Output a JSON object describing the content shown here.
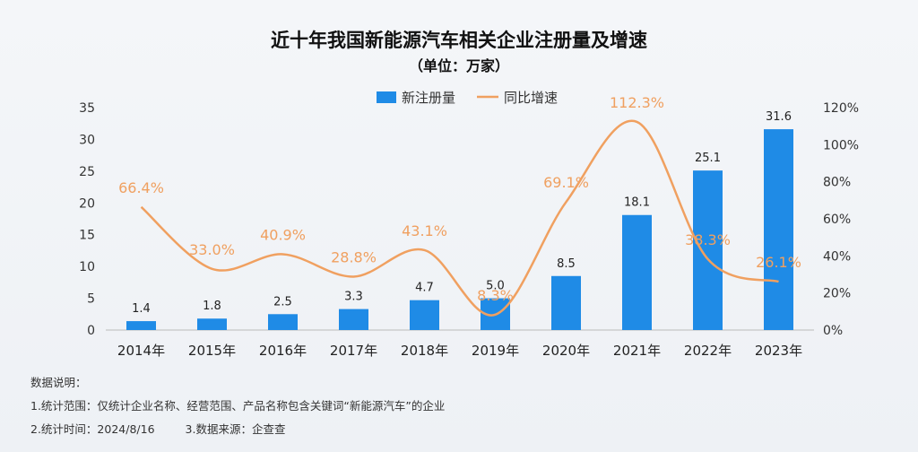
{
  "chart_data": {
    "type": "bar+line",
    "title": "近十年我国新能源汽车相关企业注册量及增速",
    "subtitle": "（单位：万家）",
    "categories": [
      "2014年",
      "2015年",
      "2016年",
      "2017年",
      "2018年",
      "2019年",
      "2020年",
      "2021年",
      "2022年",
      "2023年"
    ],
    "series": [
      {
        "name": "新注册量",
        "kind": "bar",
        "axis": "left",
        "values": [
          1.4,
          1.8,
          2.5,
          3.3,
          4.7,
          5.0,
          8.5,
          18.1,
          25.1,
          31.6
        ],
        "labels": [
          "1.4",
          "1.8",
          "2.5",
          "3.3",
          "4.7",
          "5.0",
          "8.5",
          "18.1",
          "25.1",
          "31.6"
        ],
        "color": "#1f8be6"
      },
      {
        "name": "同比增速",
        "kind": "line",
        "axis": "right",
        "values": [
          66.4,
          33.0,
          40.9,
          28.8,
          43.1,
          8.3,
          69.1,
          112.3,
          38.3,
          26.1
        ],
        "labels": [
          "66.4%",
          "33.0%",
          "40.9%",
          "28.8%",
          "43.1%",
          "8.3%",
          "69.1%",
          "112.3%",
          "38.3%",
          "26.1%"
        ],
        "color": "#f0a060"
      }
    ],
    "y_left": {
      "min": 0,
      "max": 35,
      "ticks": [
        "0",
        "5",
        "10",
        "15",
        "20",
        "25",
        "30",
        "35"
      ]
    },
    "y_right": {
      "min": 0,
      "max": 120,
      "ticks": [
        "0%",
        "20%",
        "40%",
        "60%",
        "80%",
        "100%",
        "120%"
      ]
    },
    "legend": "top-center",
    "grid": false
  },
  "notes": {
    "heading": "数据说明：",
    "line1": "1.统计范围：仅统计企业名称、经营范围、产品名称包含关键词“新能源汽车”的企业",
    "line2a": "2.统计时间：2024/8/16",
    "line2b": "3.数据来源：企查查"
  }
}
